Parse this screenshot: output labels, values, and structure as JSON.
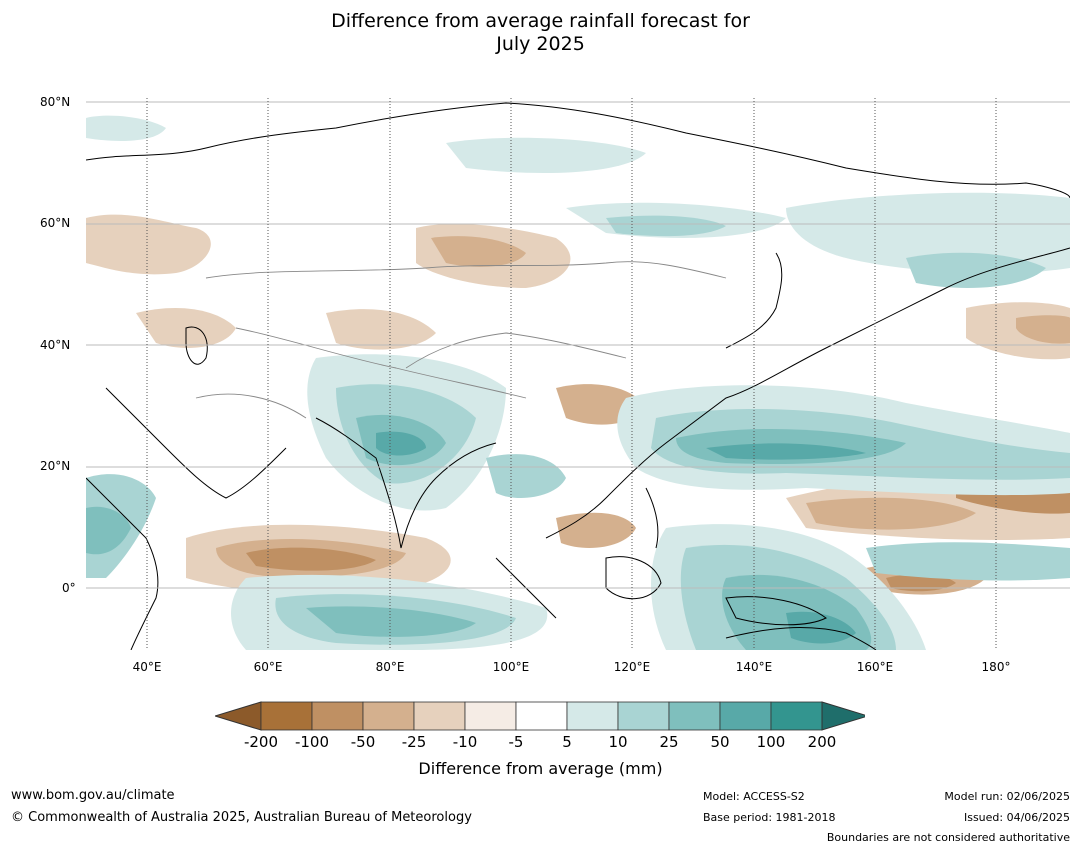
{
  "title_line1": "Difference from average rainfall forecast for",
  "title_line2": "July 2025",
  "lat_labels": [
    "80°N",
    "60°N",
    "40°N",
    "20°N",
    "0°"
  ],
  "lon_labels": [
    "40°E",
    "60°E",
    "80°E",
    "100°E",
    "120°E",
    "140°E",
    "160°E",
    "180°"
  ],
  "legend": {
    "ticks": [
      "-200",
      "-100",
      "-50",
      "-25",
      "-10",
      "-5",
      "5",
      "10",
      "25",
      "50",
      "100",
      "200"
    ],
    "colors": [
      "#8c5a2a",
      "#a87138",
      "#bf9063",
      "#d4b08e",
      "#e6d1bd",
      "#f5ece5",
      "#ffffff",
      "#d5e9e8",
      "#a9d4d3",
      "#7fbfbd",
      "#58a9a8",
      "#33958f",
      "#1f6e6b"
    ],
    "label": "Difference from average (mm)"
  },
  "footer": {
    "website": "www.bom.gov.au/climate",
    "copyright": "© Commonwealth of Australia 2025, Australian Bureau of Meteorology",
    "model": "Model: ACCESS-S2",
    "base_period": "Base period: 1981-2018",
    "model_run": "Model run: 02/06/2025",
    "issued": "Issued: 04/06/2025",
    "disclaimer": "Boundaries are not considered authoritative"
  }
}
